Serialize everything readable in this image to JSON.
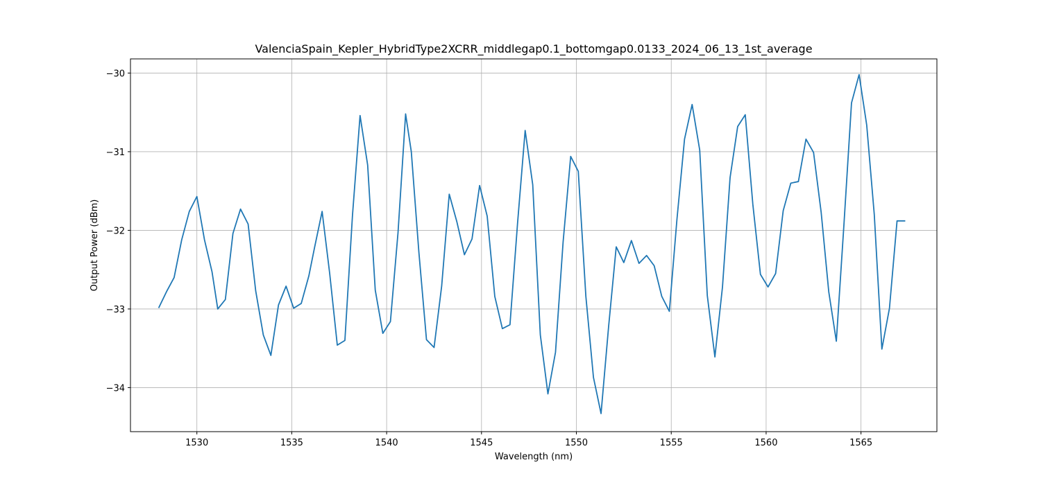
{
  "chart_data": {
    "type": "line",
    "title": "ValenciaSpain_Kepler_HybridType2XCRR_middlegap0.1_bottomgap0.0133_2024_06_13_1st_average",
    "xlabel": "Wavelength (nm)",
    "ylabel": "Output Power (dBm)",
    "xlim": [
      1526.5,
      1569.0
    ],
    "ylim": [
      -34.56,
      -29.82
    ],
    "xticks": [
      1530,
      1535,
      1540,
      1545,
      1550,
      1555,
      1560,
      1565
    ],
    "yticks": [
      -34,
      -33,
      -32,
      -31,
      -30
    ],
    "xtick_labels": [
      "1530",
      "1535",
      "1540",
      "1545",
      "1550",
      "1555",
      "1560",
      "1565"
    ],
    "ytick_labels": [
      "−34",
      "−33",
      "−32",
      "−31",
      "−30"
    ],
    "grid": true,
    "line_color": "#1f77b4",
    "series": [
      {
        "x": [
          1528.0,
          1528.4,
          1528.8,
          1529.2,
          1529.6,
          1530.0,
          1530.4,
          1530.8,
          1531.1,
          1531.5,
          1531.9,
          1532.3,
          1532.7,
          1533.1,
          1533.5,
          1533.9,
          1534.3,
          1534.7,
          1535.1,
          1535.5,
          1535.9,
          1536.2,
          1536.6,
          1537.0,
          1537.4,
          1537.8,
          1538.2,
          1538.6,
          1539.0,
          1539.4,
          1539.8,
          1540.2,
          1540.6,
          1541.0,
          1541.3,
          1541.7,
          1542.1,
          1542.5,
          1542.9,
          1543.3,
          1543.7,
          1544.1,
          1544.5,
          1544.9,
          1545.3,
          1545.7,
          1546.1,
          1546.5,
          1546.9,
          1547.3,
          1547.7,
          1548.1,
          1548.5,
          1548.9,
          1549.3,
          1549.7,
          1550.1,
          1550.5,
          1550.9,
          1551.3,
          1551.7,
          1552.1,
          1552.5,
          1552.9,
          1553.3,
          1553.7,
          1554.1,
          1554.5,
          1554.9,
          1555.3,
          1555.7,
          1556.1,
          1556.5,
          1556.9,
          1557.3,
          1557.7,
          1558.1,
          1558.5,
          1558.9,
          1559.3,
          1559.7,
          1560.1,
          1560.5,
          1560.9,
          1561.3,
          1561.7,
          1562.1,
          1562.5,
          1562.9,
          1563.3,
          1563.7,
          1564.1,
          1564.5,
          1564.9,
          1565.3,
          1565.7,
          1566.1,
          1566.5,
          1566.9,
          1567.3
        ],
        "y": [
          -32.98,
          -32.78,
          -32.6,
          -32.12,
          -31.76,
          -31.57,
          -32.12,
          -32.53,
          -33.0,
          -32.88,
          -32.04,
          -31.73,
          -31.92,
          -32.77,
          -33.33,
          -33.59,
          -32.95,
          -32.71,
          -32.99,
          -32.93,
          -32.58,
          -32.22,
          -31.76,
          -32.55,
          -33.46,
          -33.4,
          -31.81,
          -30.54,
          -31.17,
          -32.76,
          -33.31,
          -33.16,
          -32.03,
          -30.52,
          -31.0,
          -32.28,
          -33.39,
          -33.49,
          -32.71,
          -31.54,
          -31.89,
          -32.31,
          -32.11,
          -31.43,
          -31.82,
          -32.84,
          -33.25,
          -33.2,
          -31.91,
          -30.73,
          -31.42,
          -33.33,
          -34.08,
          -33.55,
          -32.15,
          -31.06,
          -31.25,
          -32.84,
          -33.87,
          -34.33,
          -33.22,
          -32.21,
          -32.41,
          -32.13,
          -32.42,
          -32.32,
          -32.45,
          -32.84,
          -33.03,
          -31.86,
          -30.84,
          -30.4,
          -30.98,
          -32.83,
          -33.61,
          -32.72,
          -31.33,
          -30.68,
          -30.53,
          -31.67,
          -32.56,
          -32.72,
          -32.55,
          -31.75,
          -31.4,
          -31.38,
          -30.84,
          -31.01,
          -31.77,
          -32.78,
          -33.41,
          -31.93,
          -30.38,
          -30.02,
          -30.66,
          -31.8,
          -33.51,
          -32.99,
          -31.88,
          -31.88
        ]
      }
    ]
  }
}
